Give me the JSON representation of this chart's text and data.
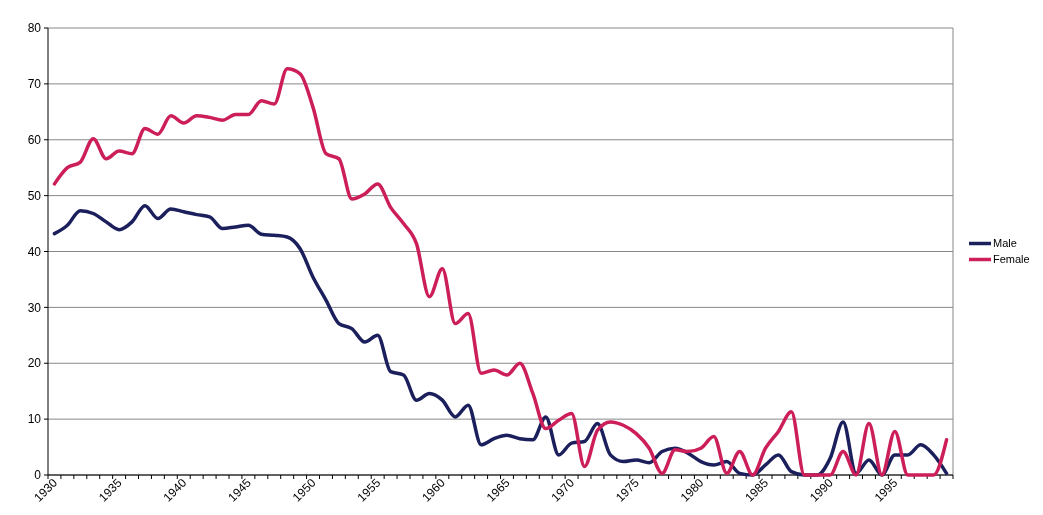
{
  "chart_data": {
    "type": "line",
    "categories": [
      "1930",
      null,
      null,
      null,
      null,
      "1935",
      null,
      null,
      null,
      null,
      "1940",
      null,
      null,
      null,
      null,
      "1945",
      null,
      null,
      null,
      null,
      "1950",
      null,
      null,
      null,
      null,
      "1955",
      null,
      null,
      null,
      null,
      "1960",
      null,
      null,
      null,
      null,
      "1965",
      null,
      null,
      null,
      null,
      "1970",
      null,
      null,
      null,
      null,
      "1975",
      null,
      null,
      null,
      null,
      "1980",
      null,
      null,
      null,
      null,
      "1985",
      null,
      null,
      null,
      null,
      "1990",
      null,
      null,
      null,
      null,
      "1995",
      null,
      null,
      null,
      null
    ],
    "series": [
      {
        "name": "Male",
        "color": "#1b1f5c",
        "values": [
          43.2,
          44.7,
          47.3,
          46.8,
          45.3,
          43.9,
          45.3,
          48.2,
          45.9,
          47.6,
          47.1,
          46.6,
          46.2,
          44.1,
          44.4,
          44.7,
          43.1,
          42.9,
          42.6,
          40.5,
          35.4,
          31.3,
          27.1,
          26.2,
          23.8,
          25,
          18.5,
          17.9,
          13.4,
          14.6,
          13.4,
          10.4,
          12.5,
          5.4,
          6.5,
          7.1,
          6.5,
          6.3,
          10.4,
          3.6,
          5.7,
          6,
          9.2,
          3.6,
          2.4,
          2.7,
          2.2,
          4.2,
          4.8,
          3.9,
          2.4,
          1.8,
          2.4,
          0.3,
          0,
          1.8,
          3.6,
          0.6,
          0,
          0,
          3,
          9.5,
          0.3,
          2.7,
          0,
          3.6,
          3.6,
          5.4,
          3.6,
          0.3
        ]
      },
      {
        "name": "Female",
        "color": "#cc1f5a",
        "values": [
          52.1,
          55,
          56,
          60.2,
          56.6,
          58,
          57.5,
          62,
          61,
          64.3,
          63,
          64.3,
          64,
          63.5,
          64.5,
          64.5,
          67,
          66.4,
          72.7,
          71.8,
          65.8,
          57.5,
          56.6,
          49.4,
          50.3,
          52.1,
          47.9,
          45,
          41.4,
          31.9,
          36.9,
          27.1,
          28.9,
          18.2,
          18.8,
          17.9,
          20,
          14.6,
          8.3,
          9.8,
          11,
          1.5,
          8,
          9.5,
          8.9,
          7.4,
          4.8,
          0.3,
          4.5,
          4.2,
          4.8,
          6.9,
          0.3,
          4.2,
          0,
          4.8,
          7.8,
          11.3,
          0,
          0,
          0,
          4.2,
          0,
          9.2,
          0,
          7.8,
          0,
          0,
          0,
          6.3
        ]
      }
    ],
    "ylim": [
      0,
      80
    ],
    "yticks": [
      0,
      10,
      20,
      30,
      40,
      50,
      60,
      70,
      80
    ],
    "grid": "y",
    "legend": "right",
    "marker": "none",
    "line_style": "solid"
  }
}
